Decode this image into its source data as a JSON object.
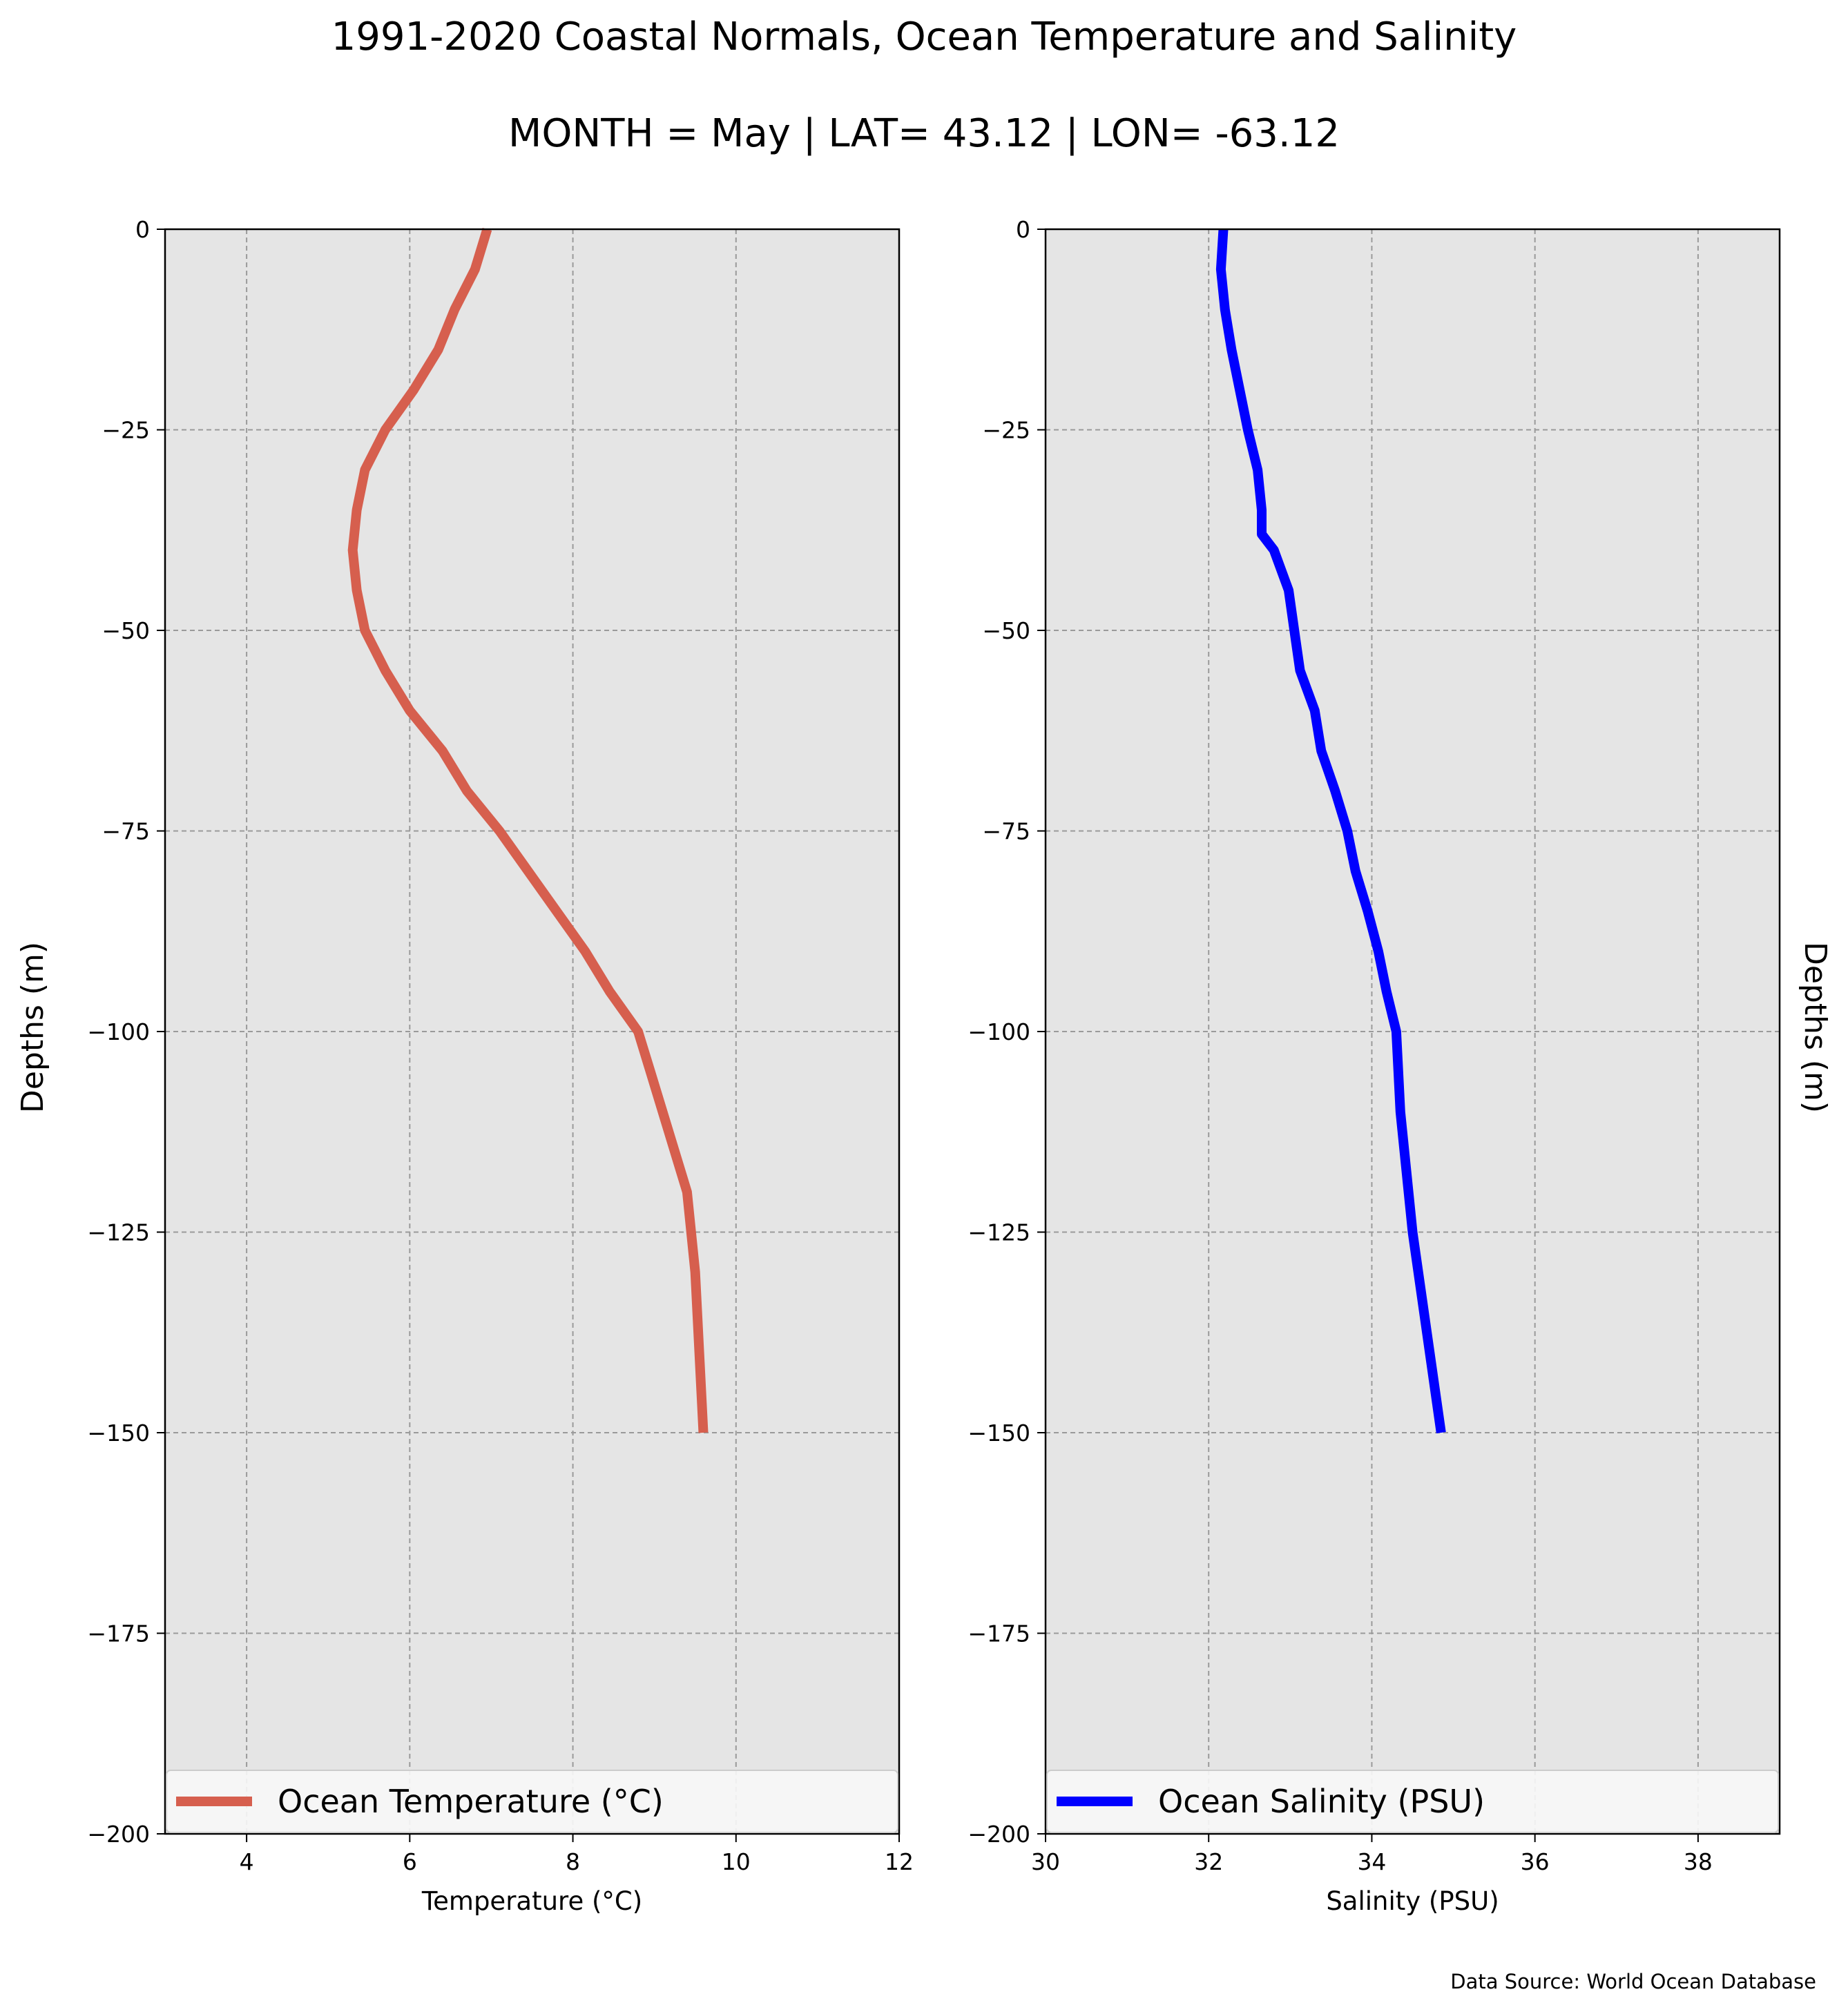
{
  "figure": {
    "title": "1991-2020 Coastal Normals, Ocean Temperature and Salinity",
    "subtitle": "MONTH = May | LAT= 43.12 | LON= -63.12",
    "source_note": "Data Source: World Ocean Database"
  },
  "chart_data": [
    {
      "type": "line",
      "xlabel": "Temperature (°C)",
      "ylabel": "Depths (m)",
      "xlim": [
        3,
        12
      ],
      "ylim": [
        -200,
        0
      ],
      "xticks": [
        "4",
        "6",
        "8",
        "10",
        "12"
      ],
      "yticks": [
        "0",
        "−25",
        "−50",
        "−75",
        "−100",
        "−125",
        "−150",
        "−175",
        "−200"
      ],
      "grid": true,
      "legend_position": "bottom",
      "series": [
        {
          "name": "Ocean Temperature (°C)",
          "color": "#d65f4e",
          "x": [
            6.95,
            6.8,
            6.55,
            6.35,
            6.05,
            5.7,
            5.45,
            5.35,
            5.3,
            5.35,
            5.45,
            5.7,
            6.0,
            6.4,
            6.7,
            7.1,
            7.45,
            7.8,
            8.15,
            8.45,
            8.8,
            8.95,
            9.1,
            9.25,
            9.4,
            9.45,
            9.5,
            9.55,
            9.6
          ],
          "y": [
            0,
            -5,
            -10,
            -15,
            -20,
            -25,
            -30,
            -35,
            -40,
            -45,
            -50,
            -55,
            -60,
            -65,
            -70,
            -75,
            -80,
            -85,
            -90,
            -95,
            -100,
            -105,
            -110,
            -115,
            -120,
            -125,
            -130,
            -140,
            -150
          ]
        }
      ]
    },
    {
      "type": "line",
      "xlabel": "Salinity (PSU)",
      "ylabel": "Depths (m)",
      "xlim": [
        30,
        39
      ],
      "ylim": [
        -200,
        0
      ],
      "xticks": [
        "30",
        "32",
        "34",
        "36",
        "38"
      ],
      "yticks": [
        "0",
        "−25",
        "−50",
        "−75",
        "−100",
        "−125",
        "−150",
        "−175",
        "−200"
      ],
      "grid": true,
      "legend_position": "bottom",
      "series": [
        {
          "name": "Ocean Salinity (PSU)",
          "color": "#0000ff",
          "x": [
            32.18,
            32.15,
            32.2,
            32.28,
            32.38,
            32.48,
            32.6,
            32.65,
            32.65,
            32.8,
            32.98,
            33.05,
            33.12,
            33.3,
            33.38,
            33.55,
            33.7,
            33.8,
            33.95,
            34.08,
            34.18,
            34.3,
            34.35,
            34.5,
            34.85
          ],
          "y": [
            0,
            -5,
            -10,
            -15,
            -20,
            -25,
            -30,
            -35,
            -38,
            -40,
            -45,
            -50,
            -55,
            -60,
            -65,
            -70,
            -75,
            -80,
            -85,
            -90,
            -95,
            -100,
            -110,
            -125,
            -150
          ]
        }
      ]
    }
  ]
}
